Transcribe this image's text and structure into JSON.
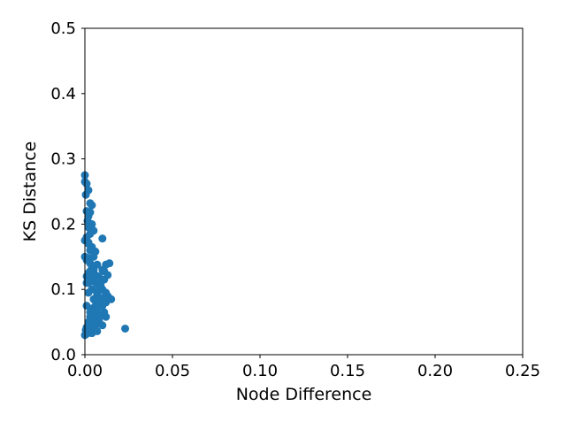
{
  "chart_data": {
    "type": "scatter",
    "title": "",
    "xlabel": "Node Difference",
    "ylabel": "KS Distance",
    "xlim": [
      0.0,
      0.25
    ],
    "ylim": [
      0.0,
      0.5
    ],
    "xticks": [
      "0.00",
      "0.05",
      "0.10",
      "0.15",
      "0.20",
      "0.25"
    ],
    "yticks": [
      "0.0",
      "0.1",
      "0.2",
      "0.3",
      "0.4",
      "0.5"
    ],
    "xtick_values": [
      0.0,
      0.05,
      0.1,
      0.15,
      0.2,
      0.25
    ],
    "ytick_values": [
      0.0,
      0.1,
      0.2,
      0.3,
      0.4,
      0.5
    ],
    "grid": false,
    "legend": "none",
    "colors": {
      "marker": "#1f77b4",
      "axes": "#000000",
      "background": "#ffffff"
    },
    "series": [
      {
        "x": [
          0.0,
          0.0,
          0.001,
          0.002,
          0.0005,
          0.003,
          0.004,
          0.001,
          0.002,
          0.003,
          0.0015,
          0.004,
          0.002,
          0.005,
          0.003,
          0.001,
          0.0,
          0.002,
          0.004,
          0.003,
          0.006,
          0.005,
          0.002,
          0.001,
          0.003,
          0.007,
          0.004,
          0.005,
          0.003,
          0.002,
          0.006,
          0.008,
          0.004,
          0.003,
          0.005,
          0.002,
          0.007,
          0.009,
          0.01,
          0.012,
          0.011,
          0.014,
          0.013,
          0.011,
          0.009,
          0.015,
          0.012,
          0.01,
          0.008,
          0.013,
          0.011,
          0.007,
          0.009,
          0.012,
          0.006,
          0.008,
          0.01,
          0.005,
          0.007,
          0.011,
          0.004,
          0.006,
          0.009,
          0.003,
          0.005,
          0.008,
          0.002,
          0.004,
          0.006,
          0.001,
          0.003,
          0.0005,
          0.002,
          0.001,
          0.0,
          0.004,
          0.007,
          0.012,
          0.01,
          0.006,
          0.003,
          0.001,
          0.005,
          0.002,
          0.004,
          0.001,
          0.0,
          0.003,
          0.002,
          0.001,
          0.01,
          0.023
        ],
        "y": [
          0.275,
          0.265,
          0.262,
          0.252,
          0.245,
          0.232,
          0.229,
          0.22,
          0.212,
          0.218,
          0.205,
          0.2,
          0.195,
          0.19,
          0.185,
          0.18,
          0.175,
          0.172,
          0.165,
          0.16,
          0.158,
          0.15,
          0.148,
          0.145,
          0.14,
          0.138,
          0.135,
          0.13,
          0.128,
          0.125,
          0.122,
          0.12,
          0.118,
          0.115,
          0.112,
          0.11,
          0.108,
          0.105,
          0.13,
          0.138,
          0.128,
          0.14,
          0.122,
          0.115,
          0.11,
          0.085,
          0.095,
          0.1,
          0.098,
          0.09,
          0.088,
          0.092,
          0.085,
          0.08,
          0.082,
          0.078,
          0.075,
          0.072,
          0.07,
          0.065,
          0.068,
          0.062,
          0.06,
          0.058,
          0.055,
          0.052,
          0.05,
          0.048,
          0.045,
          0.042,
          0.04,
          0.038,
          0.035,
          0.032,
          0.03,
          0.033,
          0.036,
          0.058,
          0.045,
          0.05,
          0.065,
          0.075,
          0.085,
          0.095,
          0.1,
          0.11,
          0.15,
          0.16,
          0.17,
          0.12,
          0.178,
          0.04
        ]
      }
    ]
  }
}
